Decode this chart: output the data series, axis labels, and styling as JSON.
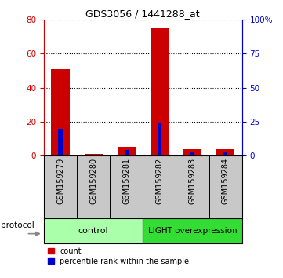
{
  "title": "GDS3056 / 1441288_at",
  "samples": [
    "GSM159279",
    "GSM159280",
    "GSM159281",
    "GSM159282",
    "GSM159283",
    "GSM159284"
  ],
  "red_values": [
    51,
    1,
    5,
    75,
    4,
    4
  ],
  "blue_values": [
    20,
    1,
    4,
    24,
    3,
    3
  ],
  "ylim_left": [
    0,
    80
  ],
  "ylim_right": [
    0,
    100
  ],
  "yticks_left": [
    0,
    20,
    40,
    60,
    80
  ],
  "yticks_right": [
    0,
    25,
    50,
    75,
    100
  ],
  "yticklabels_right": [
    "0",
    "25",
    "50",
    "75",
    "100%"
  ],
  "red_color": "#CC0000",
  "blue_color": "#0000CC",
  "bar_bg": "#C8C8C8",
  "group_bg_control": "#AAFFAA",
  "group_bg_light": "#33DD33",
  "legend_count": "count",
  "legend_pct": "percentile rank within the sample",
  "protocol_label": "protocol",
  "title_fontsize": 9,
  "tick_fontsize": 7.5,
  "label_fontsize": 7
}
